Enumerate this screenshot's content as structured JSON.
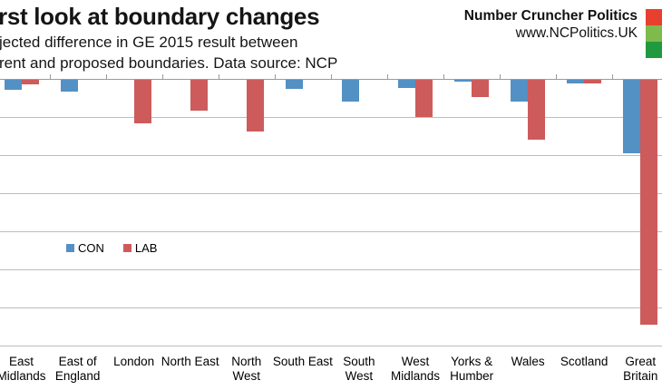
{
  "header": {
    "title": "rst look at boundary changes",
    "subtitle_line1": "jected difference in GE 2015 result between",
    "subtitle_line2": "rent and proposed boundaries. Data source: NCP",
    "brand_name": "Number Cruncher Politics",
    "brand_url": "www.NCPolitics.UK",
    "logo_colors": [
      "#e7402e",
      "#7eba4c",
      "#21993f"
    ]
  },
  "chart_data": {
    "type": "bar",
    "title": "rst look at boundary changes",
    "subtitle_lines": [
      "jected difference in GE 2015 result between",
      "rent and proposed boundaries. Data source: NCP"
    ],
    "categories": [
      "East Midlands",
      "East of England",
      "London",
      "North East",
      "North West",
      "South East",
      "South West",
      "West Midlands",
      "Yorks & Humber",
      "Wales",
      "Scotland",
      "Great Britain"
    ],
    "category_label_lines": [
      [
        "East",
        "Midlands"
      ],
      [
        "East of",
        "England"
      ],
      [
        "London"
      ],
      [
        "North East"
      ],
      [
        "North",
        "West"
      ],
      [
        "South East"
      ],
      [
        "South",
        "West"
      ],
      [
        "West",
        "Midlands"
      ],
      [
        "Yorks &",
        "Humber"
      ],
      [
        "Wales"
      ],
      [
        "Scotland"
      ],
      [
        "Great",
        "Britain"
      ]
    ],
    "series": [
      {
        "name": "CON",
        "color": "#5390c4",
        "values": [
          -0.26,
          -0.31,
          0,
          0,
          0,
          -0.24,
          -0.57,
          -0.21,
          -0.05,
          -0.57,
          -0.1,
          -1.93
        ]
      },
      {
        "name": "LAB",
        "color": "#cd5b5b",
        "values": [
          -0.12,
          0,
          -1.14,
          -0.81,
          -1.36,
          0,
          0,
          -0.98,
          -0.45,
          -1.57,
          -0.1,
          -6.43
        ]
      }
    ],
    "xlabel": "",
    "ylabel": "",
    "ylim": [
      0,
      -7
    ],
    "gridline_step": 1,
    "grid": true,
    "legend_position": "center-left",
    "units_note": "Y-axis tick labels are cropped out of the visible frame; values are estimated in gridline units (1 unit = one gridline spacing)."
  },
  "colors": {
    "gridline": "#bdbdbd",
    "zero_line": "#9a9a9a",
    "background": "#ffffff"
  }
}
